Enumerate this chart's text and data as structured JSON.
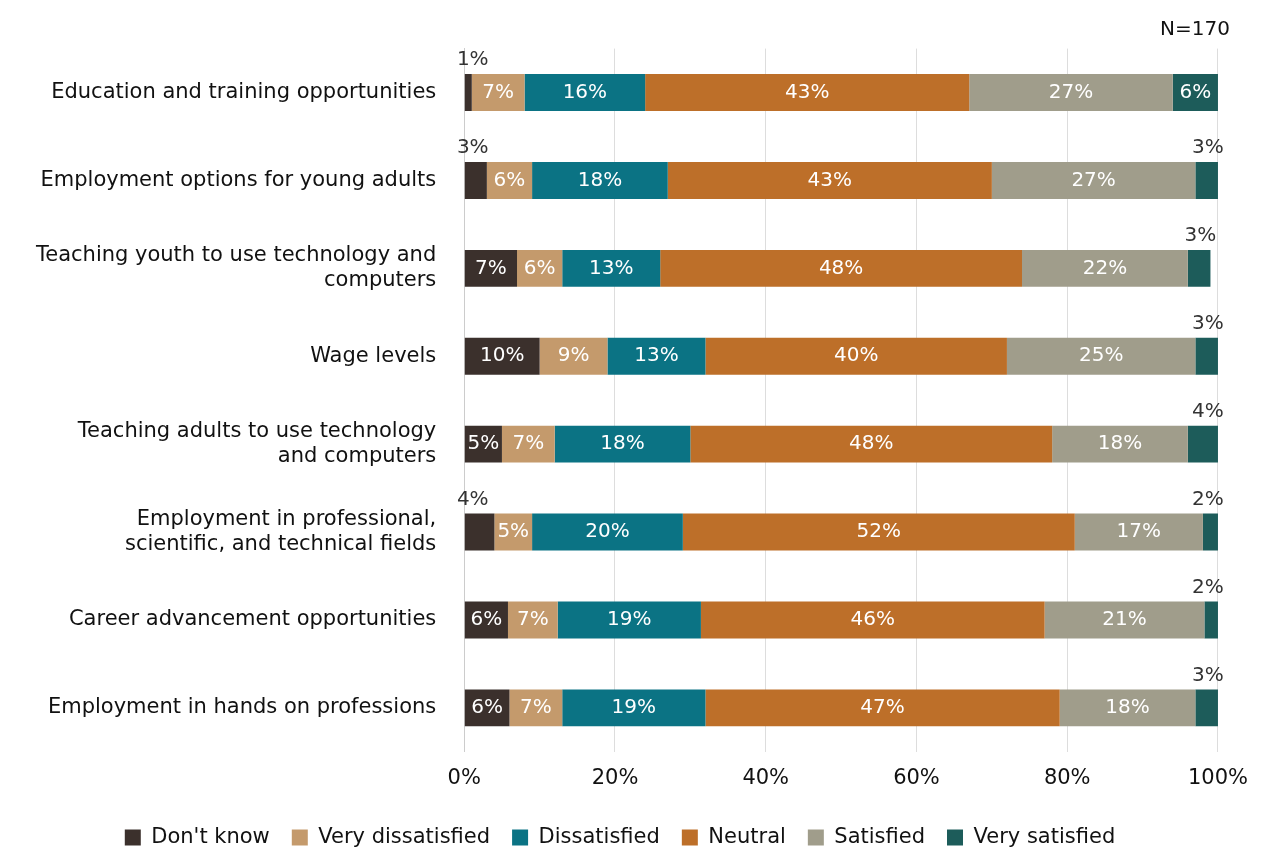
{
  "chart_data": {
    "type": "bar",
    "orientation": "horizontal",
    "stacked": true,
    "categories": [
      "Education and training opportunities",
      "Employment options for young adults",
      "Teaching youth to use technology and computers",
      "Wage levels",
      "Teaching adults to use technology and computers",
      "Employment in professional, scientific, and technical fields",
      "Career advancement opportunities",
      "Employment in hands on professions"
    ],
    "series": [
      {
        "name": "Don't know",
        "color": "#3b302c",
        "values": [
          1,
          3,
          7,
          10,
          5,
          4,
          5.8,
          6
        ],
        "value_labels": [
          "1%",
          "3%",
          "7%",
          "10%",
          "5%",
          "4%",
          "6%",
          "6%"
        ]
      },
      {
        "name": "Very dissatisfied",
        "color": "#c49a6c",
        "values": [
          7,
          6,
          6,
          9,
          7,
          5,
          6.6,
          7
        ],
        "value_labels": [
          "7%",
          "6%",
          "6%",
          "9%",
          "7%",
          "5%",
          "7%",
          "7%"
        ]
      },
      {
        "name": "Dissatisfied",
        "color": "#0b7384",
        "values": [
          16,
          18,
          13,
          13,
          18,
          20,
          19,
          19
        ],
        "value_labels": [
          "16%",
          "18%",
          "13%",
          "13%",
          "18%",
          "20%",
          "19%",
          "19%"
        ]
      },
      {
        "name": "Neutral",
        "color": "#bd6f29",
        "values": [
          43,
          43,
          48,
          40,
          48,
          52,
          45.6,
          47
        ],
        "value_labels": [
          "43%",
          "43%",
          "48%",
          "40%",
          "48%",
          "52%",
          "46%",
          "47%"
        ]
      },
      {
        "name": "Satisfied",
        "color": "#a09d8b",
        "values": [
          27,
          27,
          22,
          25,
          18,
          17,
          21.2,
          18
        ],
        "value_labels": [
          "27%",
          "27%",
          "22%",
          "25%",
          "18%",
          "17%",
          "21%",
          "18%"
        ]
      },
      {
        "name": "Very satisfied",
        "color": "#1d5c5a",
        "values": [
          6,
          3,
          3,
          3,
          4,
          2,
          1.8,
          3
        ],
        "value_labels": [
          "6%",
          "3%",
          "3%",
          "3%",
          "4%",
          "2%",
          "2%",
          "3%"
        ]
      }
    ],
    "xlim": [
      0,
      100
    ],
    "xticks": [
      {
        "value": 0,
        "label": "0%"
      },
      {
        "value": 20,
        "label": "20%"
      },
      {
        "value": 40,
        "label": "40%"
      },
      {
        "value": 60,
        "label": "60%"
      },
      {
        "value": 80,
        "label": "80%"
      },
      {
        "value": 100,
        "label": "100%"
      }
    ],
    "grid": "x",
    "legend": "bottom",
    "annotations": [
      "N=170"
    ]
  }
}
